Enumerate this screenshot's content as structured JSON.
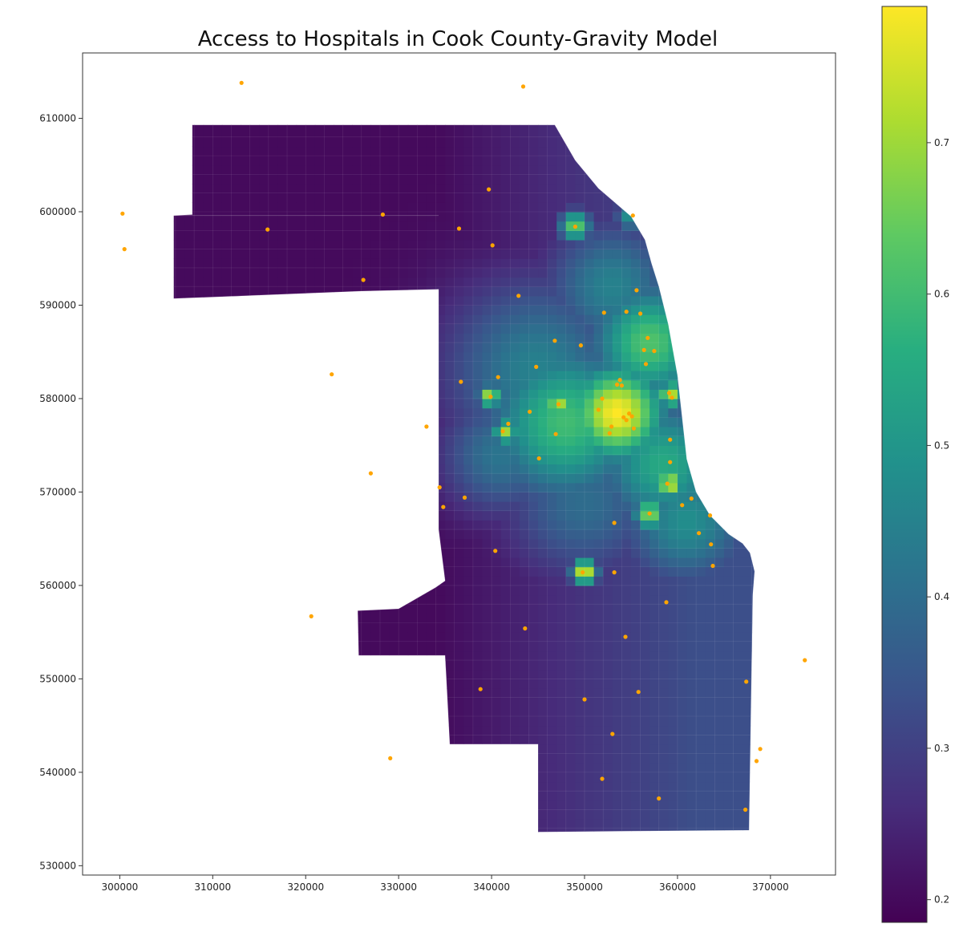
{
  "figure": {
    "title": "Access to Hospitals in Cook County-Gravity Model"
  },
  "chart_data": {
    "type": "heatmap",
    "title": "Access to Hospitals in Cook County-Gravity Model",
    "xlabel": "",
    "ylabel": "",
    "xlim": [
      296000,
      377000
    ],
    "ylim": [
      529000,
      617000
    ],
    "x_ticks": [
      "300000",
      "310000",
      "320000",
      "330000",
      "340000",
      "350000",
      "360000",
      "370000"
    ],
    "y_ticks": [
      "530000",
      "540000",
      "550000",
      "560000",
      "570000",
      "580000",
      "590000",
      "600000",
      "610000"
    ],
    "grid": false,
    "colormap": "viridis",
    "colorbar": {
      "range": [
        0.185,
        0.79
      ],
      "ticks": [
        "0.2",
        "0.3",
        "0.4",
        "0.5",
        "0.6",
        "0.7"
      ]
    },
    "region": {
      "name": "Cook County",
      "boundary": [
        [
          307800,
          609300
        ],
        [
          346800,
          609300
        ],
        [
          349000,
          605500
        ],
        [
          351500,
          602500
        ],
        [
          355000,
          599500
        ],
        [
          356500,
          597000
        ],
        [
          357200,
          594500
        ],
        [
          358000,
          592000
        ],
        [
          359000,
          588000
        ],
        [
          360000,
          582500
        ],
        [
          360500,
          578000
        ],
        [
          361000,
          573500
        ],
        [
          362000,
          570000
        ],
        [
          363500,
          567500
        ],
        [
          365500,
          565500
        ],
        [
          367000,
          564500
        ],
        [
          367800,
          563500
        ],
        [
          368300,
          561500
        ],
        [
          368100,
          559000
        ],
        [
          367700,
          533800
        ],
        [
          355000,
          533700
        ],
        [
          345000,
          533600
        ],
        [
          345000,
          543000
        ],
        [
          335500,
          543000
        ],
        [
          335000,
          552500
        ],
        [
          325700,
          552500
        ],
        [
          325600,
          557300
        ],
        [
          330000,
          557500
        ],
        [
          334000,
          559800
        ],
        [
          335000,
          560500
        ],
        [
          334300,
          566000
        ],
        [
          334300,
          591700
        ],
        [
          326000,
          591500
        ],
        [
          305800,
          590700
        ],
        [
          305800,
          599600
        ],
        [
          307800,
          599700
        ]
      ],
      "interior_lines": [
        [
          [
            305800,
            599600
          ],
          [
            334300,
            599600
          ]
        ],
        [
          [
            325700,
            552500
          ],
          [
            335000,
            552500
          ]
        ]
      ],
      "value_field": {
        "base": 0.2,
        "east_gradient": {
          "x0": 334000,
          "x1": 362000,
          "max_add": 0.13
        },
        "hotspots": [
          {
            "x": 353500,
            "y": 578500,
            "radius": 3800,
            "value": 0.79
          },
          {
            "x": 357000,
            "y": 586000,
            "radius": 4500,
            "value": 0.62
          },
          {
            "x": 358500,
            "y": 573000,
            "radius": 5000,
            "value": 0.55
          },
          {
            "x": 348000,
            "y": 577500,
            "radius": 6000,
            "value": 0.6
          },
          {
            "x": 353000,
            "y": 592000,
            "radius": 5000,
            "value": 0.45
          },
          {
            "x": 345000,
            "y": 583000,
            "radius": 7000,
            "value": 0.45
          },
          {
            "x": 361000,
            "y": 567000,
            "radius": 5000,
            "value": 0.48
          },
          {
            "x": 350000,
            "y": 569000,
            "radius": 6000,
            "value": 0.4
          },
          {
            "x": 341000,
            "y": 574000,
            "radius": 4500,
            "value": 0.42
          },
          {
            "x": 350000,
            "y": 561500,
            "radius": 1000,
            "value": 0.78
          },
          {
            "x": 349000,
            "y": 598500,
            "radius": 1200,
            "value": 0.65
          },
          {
            "x": 357000,
            "y": 567700,
            "radius": 1300,
            "value": 0.68
          },
          {
            "x": 359200,
            "y": 570900,
            "radius": 1200,
            "value": 0.74
          },
          {
            "x": 359300,
            "y": 580500,
            "radius": 1100,
            "value": 0.72
          },
          {
            "x": 341500,
            "y": 576500,
            "radius": 1000,
            "value": 0.7
          },
          {
            "x": 339800,
            "y": 580300,
            "radius": 900,
            "value": 0.72
          },
          {
            "x": 347200,
            "y": 579600,
            "radius": 1100,
            "value": 0.72
          },
          {
            "x": 355000,
            "y": 599600,
            "radius": 1200,
            "value": 0.5
          }
        ]
      }
    },
    "hospitals": {
      "color": "#ffa500",
      "points": [
        [
          300300,
          599800
        ],
        [
          300500,
          596000
        ],
        [
          313100,
          613800
        ],
        [
          315900,
          598100
        ],
        [
          322800,
          582600
        ],
        [
          326200,
          592700
        ],
        [
          327000,
          572000
        ],
        [
          328300,
          599700
        ],
        [
          320600,
          556700
        ],
        [
          329100,
          541500
        ],
        [
          333000,
          577000
        ],
        [
          334400,
          570500
        ],
        [
          334800,
          568400
        ],
        [
          336500,
          598200
        ],
        [
          336700,
          581800
        ],
        [
          337100,
          569400
        ],
        [
          338800,
          548900
        ],
        [
          339700,
          602400
        ],
        [
          340100,
          596400
        ],
        [
          340400,
          563700
        ],
        [
          340700,
          582300
        ],
        [
          339900,
          580200
        ],
        [
          341200,
          576500
        ],
        [
          341800,
          577300
        ],
        [
          342900,
          591000
        ],
        [
          343400,
          613400
        ],
        [
          343600,
          555400
        ],
        [
          344100,
          578600
        ],
        [
          344800,
          583400
        ],
        [
          345100,
          573600
        ],
        [
          346800,
          586200
        ],
        [
          347200,
          579400
        ],
        [
          346900,
          576200
        ],
        [
          349000,
          598400
        ],
        [
          349600,
          585700
        ],
        [
          349800,
          561400
        ],
        [
          350000,
          547800
        ],
        [
          351500,
          578800
        ],
        [
          351900,
          580000
        ],
        [
          351900,
          539300
        ],
        [
          352100,
          589200
        ],
        [
          352700,
          576300
        ],
        [
          352900,
          577000
        ],
        [
          353000,
          544100
        ],
        [
          353200,
          561400
        ],
        [
          353200,
          566700
        ],
        [
          353500,
          581500
        ],
        [
          353800,
          582000
        ],
        [
          354000,
          581400
        ],
        [
          354200,
          578000
        ],
        [
          354500,
          577700
        ],
        [
          354800,
          578400
        ],
        [
          355100,
          578100
        ],
        [
          355300,
          576800
        ],
        [
          355200,
          599600
        ],
        [
          354500,
          589300
        ],
        [
          354400,
          554500
        ],
        [
          355600,
          591600
        ],
        [
          355800,
          548600
        ],
        [
          356000,
          589100
        ],
        [
          356400,
          585200
        ],
        [
          356600,
          583700
        ],
        [
          356800,
          586500
        ],
        [
          357500,
          585100
        ],
        [
          357000,
          567700
        ],
        [
          358000,
          537200
        ],
        [
          358800,
          558200
        ],
        [
          358900,
          570900
        ],
        [
          359100,
          580600
        ],
        [
          359200,
          575600
        ],
        [
          359400,
          580100
        ],
        [
          359200,
          573200
        ],
        [
          360500,
          568600
        ],
        [
          361500,
          569300
        ],
        [
          362300,
          565600
        ],
        [
          363600,
          564400
        ],
        [
          363500,
          567500
        ],
        [
          363800,
          562100
        ],
        [
          367300,
          536000
        ],
        [
          367400,
          549700
        ],
        [
          368500,
          541200
        ],
        [
          368900,
          542500
        ],
        [
          373700,
          552000
        ]
      ]
    }
  }
}
